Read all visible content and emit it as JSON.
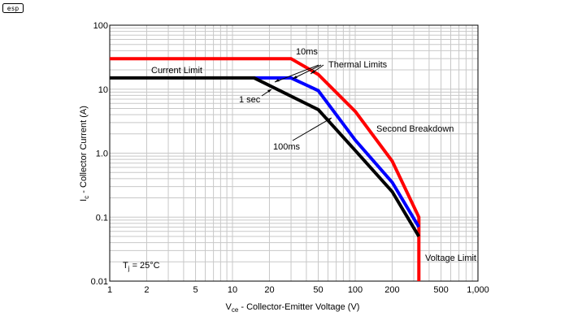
{
  "logo": {
    "text": "esp"
  },
  "chart_data": {
    "type": "line",
    "x_scale": "log",
    "y_scale": "log",
    "xlim": [
      1,
      1000
    ],
    "ylim": [
      0.01,
      100
    ],
    "grid": true,
    "x_ticks": [
      {
        "v": 1,
        "label": "1"
      },
      {
        "v": 2,
        "label": "2"
      },
      {
        "v": 5,
        "label": "5"
      },
      {
        "v": 10,
        "label": "10"
      },
      {
        "v": 20,
        "label": "20"
      },
      {
        "v": 50,
        "label": "50"
      },
      {
        "v": 100,
        "label": "100"
      },
      {
        "v": 200,
        "label": "200"
      },
      {
        "v": 500,
        "label": "500"
      },
      {
        "v": 1000,
        "label": "1,000"
      }
    ],
    "y_ticks": [
      {
        "v": 100,
        "label": "100"
      },
      {
        "v": 10,
        "label": "10"
      },
      {
        "v": 1,
        "label": "1.0"
      },
      {
        "v": 0.1,
        "label": "0.1"
      },
      {
        "v": 0.01,
        "label": "0.01"
      }
    ],
    "xlabel": {
      "main": "V",
      "sub": "ce",
      "rest": " - Collector-Emitter Voltage (V)"
    },
    "ylabel": {
      "main": "I",
      "sub": "c",
      "rest": " - Collector Current (A)"
    },
    "series": [
      {
        "color": "#ff0000",
        "points": [
          [
            1,
            30
          ],
          [
            30,
            30
          ],
          [
            50,
            17
          ],
          [
            100,
            4.5
          ],
          [
            200,
            0.75
          ],
          [
            330,
            0.1
          ],
          [
            330,
            0.01
          ]
        ]
      },
      {
        "color": "#0000ff",
        "points": [
          [
            15,
            15
          ],
          [
            30,
            15
          ],
          [
            50,
            9.5
          ],
          [
            100,
            1.6
          ],
          [
            200,
            0.35
          ],
          [
            330,
            0.07
          ]
        ]
      },
      {
        "color": "#000000",
        "points": [
          [
            1,
            15
          ],
          [
            15,
            15
          ],
          [
            50,
            4.8
          ],
          [
            100,
            1.1
          ],
          [
            200,
            0.25
          ],
          [
            330,
            0.05
          ]
        ]
      }
    ],
    "annotations": {
      "current_limit": "Current Limit",
      "ten_ms": "10ms",
      "thermal_limits": "Thermal Limits",
      "one_sec": "1 sec",
      "hundred_ms": "100ms",
      "second_breakdown": "Second Breakdown",
      "voltage_limit": "Voltage Limit",
      "tj": {
        "main": "T",
        "sub": "j",
        "rest": " = 25°C"
      }
    }
  }
}
